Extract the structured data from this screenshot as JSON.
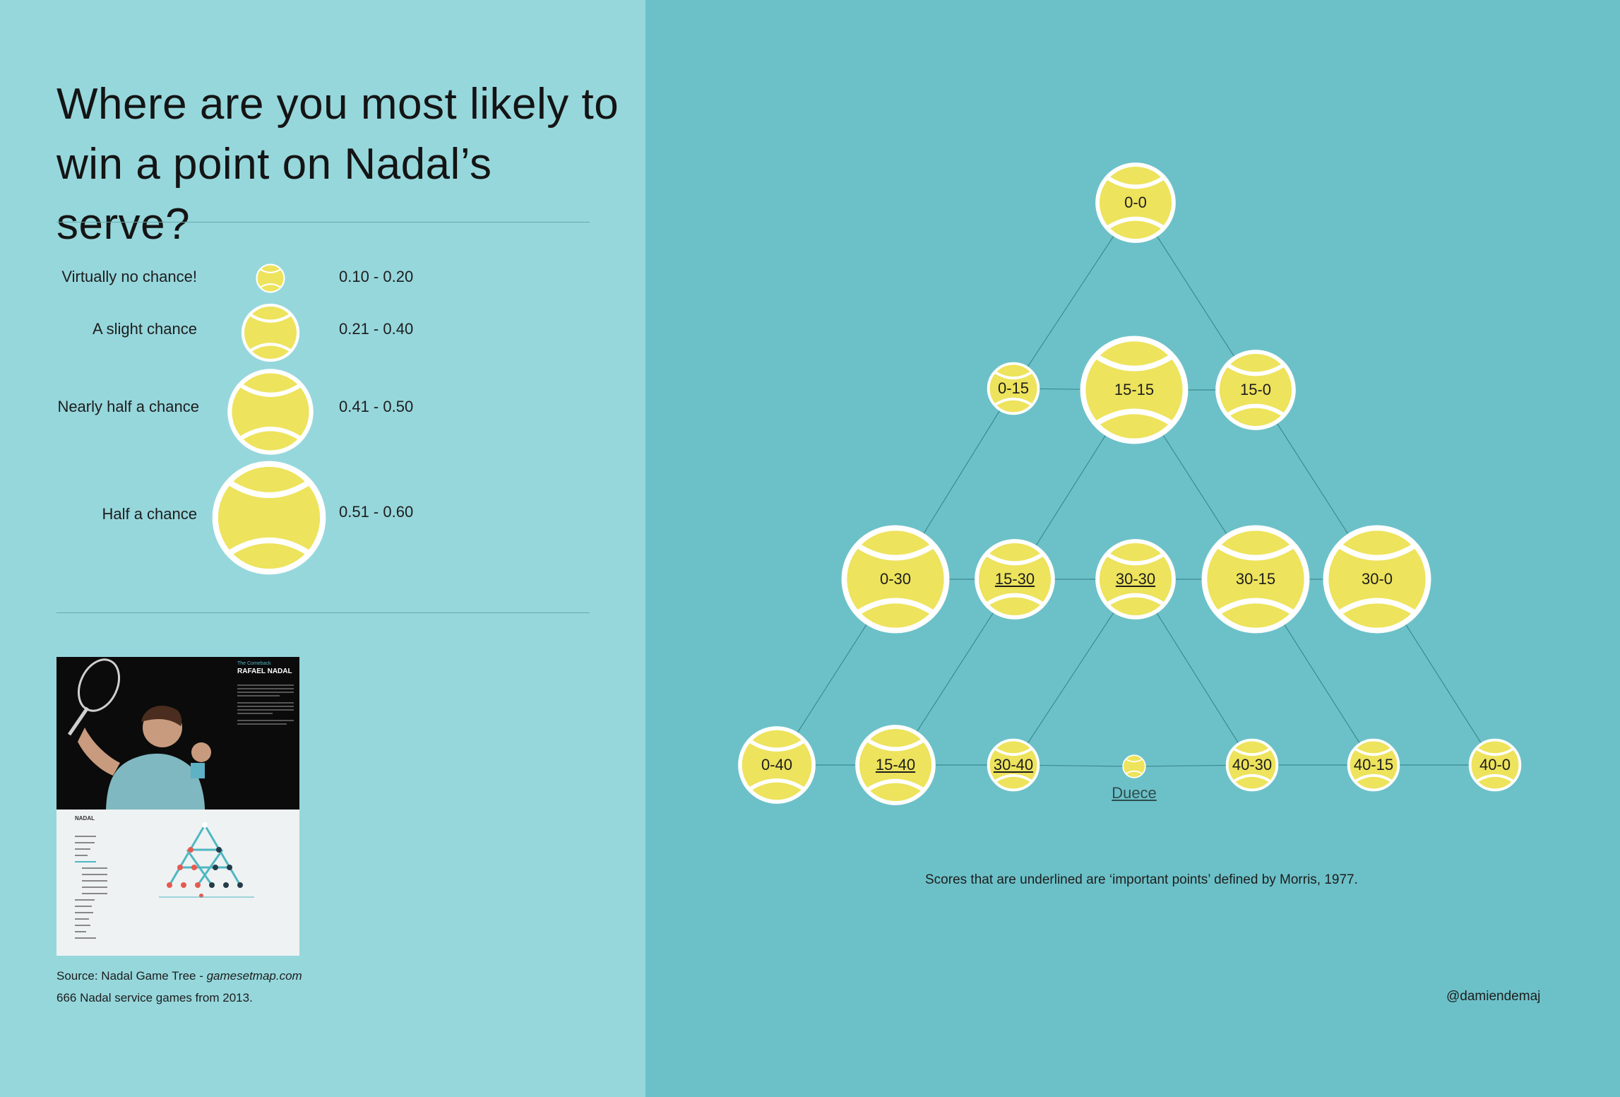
{
  "title": "Where are you most likely to win a point on Nadal’s serve?",
  "legend": [
    {
      "label": "Virtually no chance!",
      "range": "0.10 - 0.20",
      "level": "tiny"
    },
    {
      "label": "A slight chance",
      "range": "0.21 - 0.40",
      "level": "small"
    },
    {
      "label": "Nearly half a chance",
      "range": "0.41 - 0.50",
      "level": "medium"
    },
    {
      "label": "Half a chance",
      "range": "0.51 - 0.60",
      "level": "large"
    }
  ],
  "thumbnail": {
    "kicker": "The Comeback",
    "heading": "RAFAEL NADAL",
    "section": "NADAL"
  },
  "source": {
    "line1_prefix": "Source: Nadal Game Tree - ",
    "line1_site": "gamesetmap.com",
    "line2": "666 Nadal service games from 2013."
  },
  "tree": {
    "nodes": [
      {
        "id": "0-0",
        "label": "0-0",
        "level": "small",
        "underlined": false
      },
      {
        "id": "0-15",
        "label": "0-15",
        "level": "tiny",
        "underlined": false
      },
      {
        "id": "15-15",
        "label": "15-15",
        "level": "large",
        "underlined": false
      },
      {
        "id": "15-0",
        "label": "15-0",
        "level": "small",
        "underlined": false
      },
      {
        "id": "0-30",
        "label": "0-30",
        "level": "large",
        "underlined": false
      },
      {
        "id": "15-30",
        "label": "15-30",
        "level": "small",
        "underlined": true
      },
      {
        "id": "30-30",
        "label": "30-30",
        "level": "small",
        "underlined": true
      },
      {
        "id": "30-15",
        "label": "30-15",
        "level": "large",
        "underlined": false
      },
      {
        "id": "30-0",
        "label": "30-0",
        "level": "large",
        "underlined": false
      },
      {
        "id": "0-40",
        "label": "0-40",
        "level": "medium",
        "underlined": false
      },
      {
        "id": "15-40",
        "label": "15-40",
        "level": "medium",
        "underlined": true
      },
      {
        "id": "30-40",
        "label": "30-40",
        "level": "tiny",
        "underlined": true
      },
      {
        "id": "duece",
        "label": "Duece",
        "level": "dot",
        "underlined": true
      },
      {
        "id": "40-30",
        "label": "40-30",
        "level": "tiny",
        "underlined": false
      },
      {
        "id": "40-15",
        "label": "40-15",
        "level": "tiny",
        "underlined": false
      },
      {
        "id": "40-0",
        "label": "40-0",
        "level": "tiny",
        "underlined": false
      }
    ],
    "edges": [
      [
        "0-0",
        "0-15"
      ],
      [
        "0-0",
        "15-0"
      ],
      [
        "0-15",
        "15-15"
      ],
      [
        "15-15",
        "15-0"
      ],
      [
        "0-15",
        "0-30"
      ],
      [
        "15-15",
        "15-30"
      ],
      [
        "15-15",
        "30-15"
      ],
      [
        "15-0",
        "30-0"
      ],
      [
        "0-30",
        "15-30"
      ],
      [
        "15-30",
        "30-30"
      ],
      [
        "30-30",
        "30-15"
      ],
      [
        "30-15",
        "30-0"
      ],
      [
        "0-30",
        "0-40"
      ],
      [
        "15-30",
        "15-40"
      ],
      [
        "30-30",
        "30-40"
      ],
      [
        "30-30",
        "40-30"
      ],
      [
        "30-15",
        "40-15"
      ],
      [
        "30-0",
        "40-0"
      ],
      [
        "0-40",
        "15-40"
      ],
      [
        "15-40",
        "30-40"
      ],
      [
        "30-40",
        "duece"
      ],
      [
        "duece",
        "40-30"
      ],
      [
        "40-30",
        "40-15"
      ],
      [
        "40-15",
        "40-0"
      ]
    ]
  },
  "footnote": "Scores that are underlined are ‘important points’ defined by Morris, 1977.",
  "handle": "@damiendemaj",
  "colors": {
    "ball": "#ede35c",
    "seam": "#ffffff",
    "panel_left": "#96d7dc",
    "panel_right": "#6cc1c8",
    "edge": "#3e8a8f"
  }
}
